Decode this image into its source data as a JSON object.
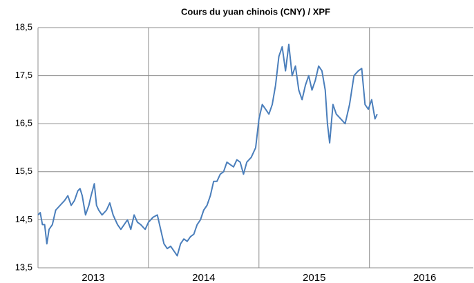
{
  "chart_data": {
    "type": "line",
    "title": "Cours du yuan chinois (CNY) / XPF",
    "x": [
      2013.0,
      2013.02,
      2013.04,
      2013.06,
      2013.08,
      2013.1,
      2013.13,
      2013.16,
      2013.2,
      2013.24,
      2013.27,
      2013.3,
      2013.33,
      2013.36,
      2013.38,
      2013.4,
      2013.43,
      2013.46,
      2013.48,
      2013.51,
      2013.53,
      2013.55,
      2013.58,
      2013.62,
      2013.65,
      2013.68,
      2013.72,
      2013.75,
      2013.78,
      2013.81,
      2013.84,
      2013.87,
      2013.9,
      2013.93,
      2013.97,
      2014.0,
      2014.04,
      2014.08,
      2014.11,
      2014.14,
      2014.17,
      2014.2,
      2014.23,
      2014.26,
      2014.29,
      2014.32,
      2014.35,
      2014.38,
      2014.41,
      2014.44,
      2014.47,
      2014.5,
      2014.53,
      2014.56,
      2014.59,
      2014.62,
      2014.65,
      2014.68,
      2014.71,
      2014.74,
      2014.77,
      2014.8,
      2014.83,
      2014.86,
      2014.89,
      2014.93,
      2014.97,
      2015.0,
      2015.03,
      2015.06,
      2015.09,
      2015.12,
      2015.15,
      2015.18,
      2015.21,
      2015.24,
      2015.27,
      2015.3,
      2015.33,
      2015.36,
      2015.39,
      2015.42,
      2015.45,
      2015.48,
      2015.51,
      2015.54,
      2015.57,
      2015.6,
      2015.62,
      2015.64,
      2015.67,
      2015.7,
      2015.74,
      2015.78,
      2015.82,
      2015.86,
      2015.9,
      2015.93,
      2015.96,
      2015.99,
      2016.02,
      2016.05,
      2016.07
    ],
    "series": [
      {
        "name": "CNY/XPF",
        "color": "#4a7ebb",
        "values": [
          14.6,
          14.65,
          14.4,
          14.4,
          14.0,
          14.3,
          14.4,
          14.7,
          14.8,
          14.9,
          15.0,
          14.8,
          14.9,
          15.1,
          15.15,
          15.0,
          14.6,
          14.8,
          15.0,
          15.25,
          14.8,
          14.7,
          14.6,
          14.7,
          14.85,
          14.6,
          14.4,
          14.3,
          14.4,
          14.5,
          14.3,
          14.6,
          14.45,
          14.4,
          14.3,
          14.45,
          14.55,
          14.6,
          14.3,
          14.0,
          13.9,
          13.95,
          13.85,
          13.75,
          14.0,
          14.1,
          14.05,
          14.15,
          14.2,
          14.4,
          14.5,
          14.7,
          14.8,
          15.0,
          15.3,
          15.3,
          15.45,
          15.5,
          15.7,
          15.65,
          15.6,
          15.75,
          15.7,
          15.45,
          15.7,
          15.8,
          16.0,
          16.6,
          16.9,
          16.8,
          16.7,
          16.9,
          17.3,
          17.9,
          18.1,
          17.6,
          18.15,
          17.5,
          17.7,
          17.2,
          17.0,
          17.3,
          17.5,
          17.2,
          17.4,
          17.7,
          17.6,
          17.2,
          16.5,
          16.1,
          16.9,
          16.7,
          16.6,
          16.5,
          16.9,
          17.5,
          17.6,
          17.65,
          16.9,
          16.8,
          17.0,
          16.6,
          16.7
        ]
      }
    ],
    "xlim": [
      2013,
      2016.94
    ],
    "xticks": [
      {
        "value": 2013.5,
        "label": "2013"
      },
      {
        "value": 2014.5,
        "label": "2014"
      },
      {
        "value": 2015.5,
        "label": "2015"
      },
      {
        "value": 2016.5,
        "label": "2016"
      }
    ],
    "x_grid": [
      2014,
      2015,
      2016
    ],
    "ylim": [
      13.5,
      18.5
    ],
    "yticks": [
      {
        "value": 13.5,
        "label": "13,5"
      },
      {
        "value": 14.5,
        "label": "14,5"
      },
      {
        "value": 15.5,
        "label": "15,5"
      },
      {
        "value": 16.5,
        "label": "16,5"
      },
      {
        "value": 17.5,
        "label": "17,5"
      },
      {
        "value": 18.5,
        "label": "18,5"
      }
    ],
    "grid": true
  }
}
